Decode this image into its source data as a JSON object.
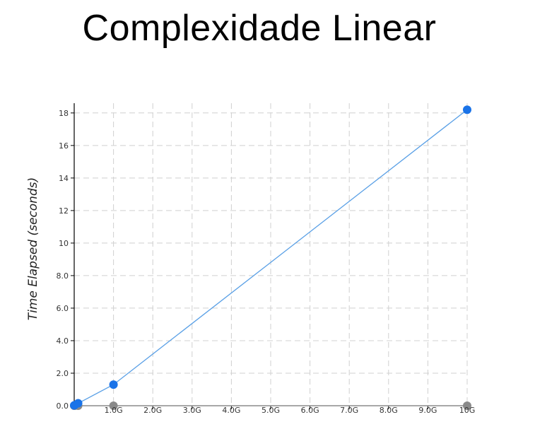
{
  "slide": {
    "title": "Complexidade Linear"
  },
  "chart_data": {
    "type": "line",
    "title": "Complexidade Linear",
    "xlabel": "",
    "ylabel": "Time Elapsed (seconds)",
    "xlim": [
      0,
      10
    ],
    "ylim": [
      0,
      18.6
    ],
    "grid": true,
    "x_ticks": [
      {
        "value": 1,
        "label": "1.0G"
      },
      {
        "value": 2,
        "label": "2.0G"
      },
      {
        "value": 3,
        "label": "3.0G"
      },
      {
        "value": 4,
        "label": "4.0G"
      },
      {
        "value": 5,
        "label": "5.0G"
      },
      {
        "value": 6,
        "label": "6.0G"
      },
      {
        "value": 7,
        "label": "7.0G"
      },
      {
        "value": 8,
        "label": "8.0G"
      },
      {
        "value": 9,
        "label": "9.0G"
      },
      {
        "value": 10,
        "label": "10G"
      }
    ],
    "y_ticks": [
      {
        "value": 0,
        "label": "0.0"
      },
      {
        "value": 2,
        "label": "2.0"
      },
      {
        "value": 4,
        "label": "4.0"
      },
      {
        "value": 6,
        "label": "6.0"
      },
      {
        "value": 8,
        "label": "8.0"
      },
      {
        "value": 10,
        "label": "10"
      },
      {
        "value": 12,
        "label": "12"
      },
      {
        "value": 14,
        "label": "14"
      },
      {
        "value": 16,
        "label": "16"
      },
      {
        "value": 18,
        "label": "18"
      }
    ],
    "series": [
      {
        "color": "#1a73e8",
        "line_color": "#5aa0e6",
        "points": [
          {
            "x": 0,
            "y": 0.02
          },
          {
            "x": 0.01,
            "y": 0.03
          },
          {
            "x": 0.1,
            "y": 0.15
          },
          {
            "x": 1,
            "y": 1.3
          },
          {
            "x": 10,
            "y": 18.2
          }
        ]
      },
      {
        "color": "#8a8a8a",
        "line_color": "#9a9a9a",
        "points": [
          {
            "x": 0,
            "y": 0
          },
          {
            "x": 0.01,
            "y": 0
          },
          {
            "x": 0.1,
            "y": 0
          },
          {
            "x": 1,
            "y": 0
          },
          {
            "x": 10,
            "y": 0
          }
        ]
      }
    ]
  }
}
